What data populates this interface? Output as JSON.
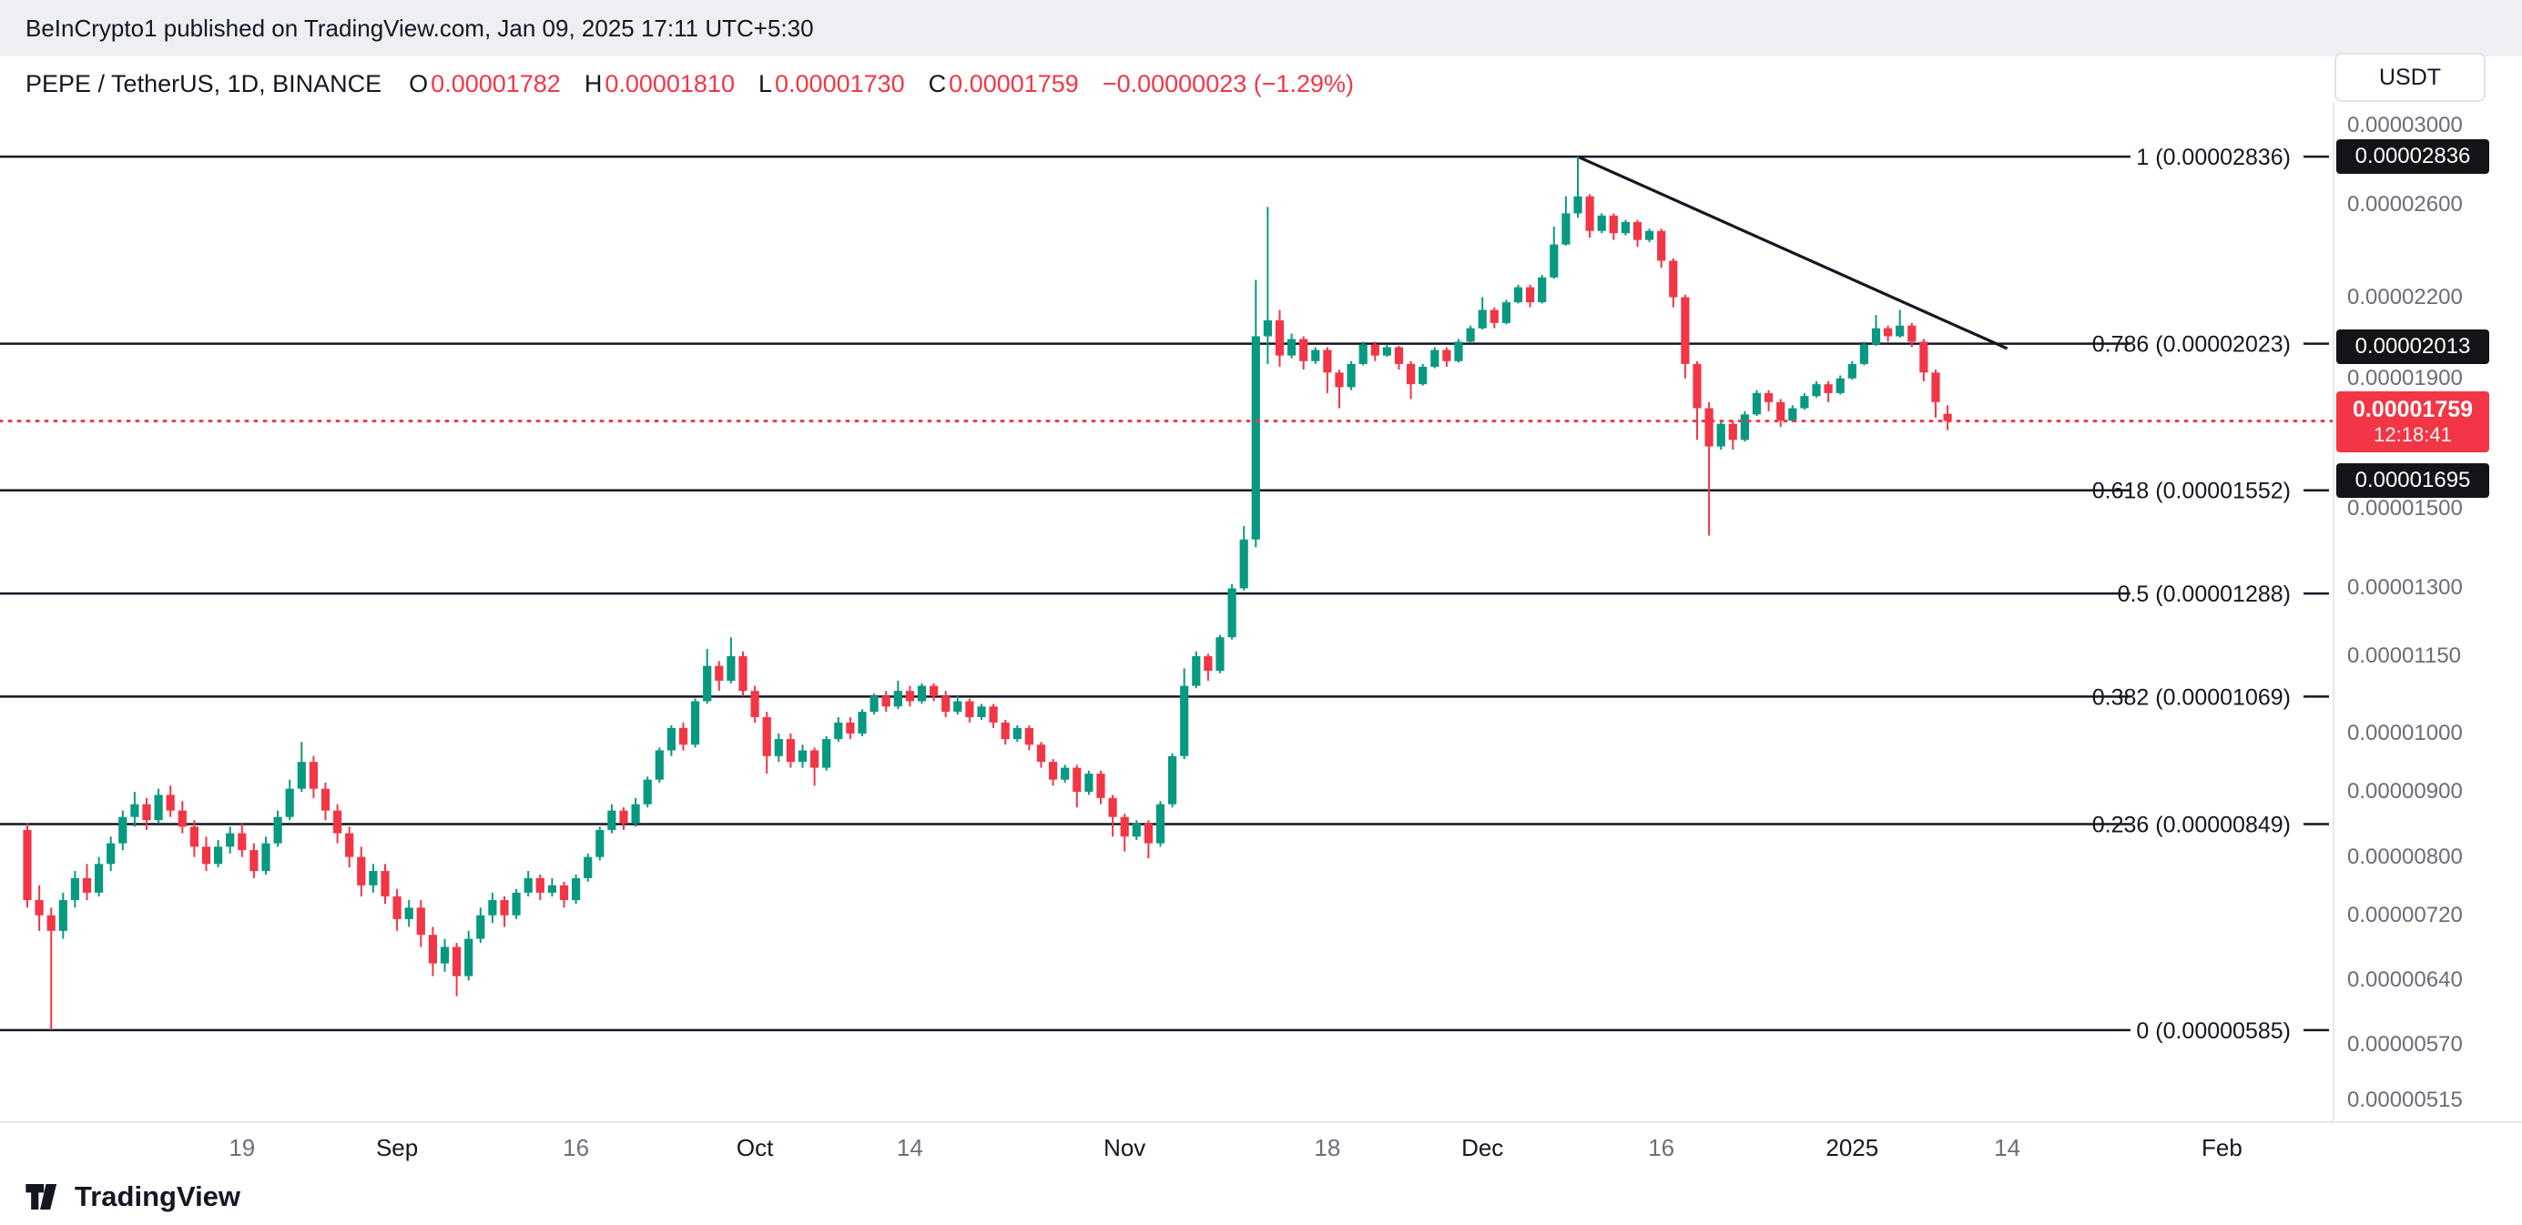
{
  "topbar": {
    "text": "BeInCrypto1 published on TradingView.com, Jan 09, 2025 17:11 UTC+5:30"
  },
  "header": {
    "symbol": "PEPE / TetherUS, 1D, BINANCE",
    "ohlc": [
      {
        "label": "O",
        "value": "0.00001782"
      },
      {
        "label": "H",
        "value": "0.00001810"
      },
      {
        "label": "L",
        "value": "0.00001730"
      },
      {
        "label": "C",
        "value": "0.00001759"
      }
    ],
    "change": "−0.00000023 (−1.29%)",
    "quote_button": "USDT"
  },
  "footer": {
    "brand": "TradingView"
  },
  "colors": {
    "up": "#089981",
    "down": "#f23645",
    "drawing": "#131722",
    "price_line": "#f23645",
    "badge_dark": "#121418"
  },
  "chart_data": {
    "type": "candlestick",
    "symbol": "PEPE/USDT",
    "interval": "1D",
    "exchange": "BINANCE",
    "scale": "logarithmic",
    "price_unit": 1e-08,
    "approx_start_date": "2024-08-01",
    "last_candle_date": "2025-01-09",
    "candles": [
      [
        840,
        850,
        730,
        740
      ],
      [
        740,
        760,
        700,
        720
      ],
      [
        720,
        730,
        585,
        700
      ],
      [
        700,
        750,
        690,
        740
      ],
      [
        740,
        780,
        730,
        770
      ],
      [
        770,
        790,
        740,
        750
      ],
      [
        750,
        800,
        745,
        790
      ],
      [
        790,
        830,
        780,
        820
      ],
      [
        820,
        870,
        810,
        860
      ],
      [
        860,
        900,
        845,
        880
      ],
      [
        880,
        890,
        840,
        855
      ],
      [
        855,
        905,
        850,
        895
      ],
      [
        895,
        910,
        860,
        870
      ],
      [
        870,
        885,
        835,
        845
      ],
      [
        845,
        855,
        800,
        815
      ],
      [
        815,
        830,
        780,
        790
      ],
      [
        790,
        825,
        785,
        815
      ],
      [
        815,
        845,
        805,
        835
      ],
      [
        835,
        850,
        800,
        810
      ],
      [
        810,
        820,
        770,
        780
      ],
      [
        780,
        830,
        775,
        820
      ],
      [
        820,
        870,
        815,
        860
      ],
      [
        860,
        920,
        855,
        905
      ],
      [
        905,
        985,
        900,
        950
      ],
      [
        950,
        960,
        890,
        905
      ],
      [
        905,
        915,
        855,
        870
      ],
      [
        870,
        880,
        820,
        835
      ],
      [
        835,
        845,
        785,
        800
      ],
      [
        800,
        815,
        745,
        760
      ],
      [
        760,
        790,
        750,
        780
      ],
      [
        780,
        790,
        735,
        745
      ],
      [
        745,
        755,
        700,
        715
      ],
      [
        715,
        740,
        705,
        730
      ],
      [
        730,
        740,
        680,
        695
      ],
      [
        695,
        705,
        645,
        660
      ],
      [
        660,
        690,
        650,
        680
      ],
      [
        680,
        685,
        622,
        645
      ],
      [
        645,
        700,
        640,
        690
      ],
      [
        690,
        730,
        685,
        720
      ],
      [
        720,
        750,
        710,
        740
      ],
      [
        740,
        745,
        705,
        720
      ],
      [
        720,
        755,
        715,
        750
      ],
      [
        750,
        780,
        745,
        770
      ],
      [
        770,
        775,
        740,
        750
      ],
      [
        750,
        770,
        745,
        760
      ],
      [
        760,
        765,
        730,
        740
      ],
      [
        740,
        775,
        735,
        770
      ],
      [
        770,
        805,
        765,
        800
      ],
      [
        800,
        845,
        795,
        840
      ],
      [
        840,
        880,
        835,
        870
      ],
      [
        870,
        875,
        840,
        850
      ],
      [
        850,
        890,
        845,
        880
      ],
      [
        880,
        925,
        875,
        920
      ],
      [
        920,
        975,
        915,
        970
      ],
      [
        970,
        1015,
        960,
        1010
      ],
      [
        1010,
        1020,
        970,
        980
      ],
      [
        980,
        1065,
        975,
        1060
      ],
      [
        1060,
        1165,
        1055,
        1130
      ],
      [
        1130,
        1140,
        1080,
        1100
      ],
      [
        1100,
        1190,
        1095,
        1150
      ],
      [
        1150,
        1160,
        1070,
        1080
      ],
      [
        1080,
        1090,
        1020,
        1030
      ],
      [
        1030,
        1040,
        930,
        960
      ],
      [
        960,
        1000,
        950,
        990
      ],
      [
        990,
        1000,
        940,
        950
      ],
      [
        950,
        980,
        940,
        970
      ],
      [
        970,
        975,
        910,
        940
      ],
      [
        940,
        995,
        935,
        990
      ],
      [
        990,
        1030,
        985,
        1020
      ],
      [
        1020,
        1030,
        990,
        1000
      ],
      [
        1000,
        1045,
        995,
        1040
      ],
      [
        1040,
        1075,
        1035,
        1070
      ],
      [
        1070,
        1080,
        1040,
        1050
      ],
      [
        1050,
        1100,
        1045,
        1080
      ],
      [
        1080,
        1090,
        1050,
        1060
      ],
      [
        1060,
        1095,
        1055,
        1090
      ],
      [
        1090,
        1095,
        1060,
        1070
      ],
      [
        1070,
        1080,
        1030,
        1040
      ],
      [
        1040,
        1070,
        1035,
        1060
      ],
      [
        1060,
        1065,
        1020,
        1030
      ],
      [
        1030,
        1055,
        1025,
        1050
      ],
      [
        1050,
        1055,
        1010,
        1020
      ],
      [
        1020,
        1025,
        980,
        990
      ],
      [
        990,
        1015,
        985,
        1010
      ],
      [
        1010,
        1015,
        970,
        980
      ],
      [
        980,
        985,
        940,
        950
      ],
      [
        950,
        955,
        910,
        920
      ],
      [
        920,
        945,
        915,
        940
      ],
      [
        940,
        945,
        875,
        900
      ],
      [
        900,
        935,
        895,
        930
      ],
      [
        930,
        935,
        880,
        890
      ],
      [
        890,
        895,
        830,
        860
      ],
      [
        860,
        865,
        808,
        830
      ],
      [
        830,
        855,
        825,
        850
      ],
      [
        850,
        855,
        798,
        820
      ],
      [
        820,
        885,
        815,
        880
      ],
      [
        880,
        965,
        875,
        960
      ],
      [
        960,
        1125,
        955,
        1090
      ],
      [
        1090,
        1160,
        1085,
        1150
      ],
      [
        1150,
        1155,
        1100,
        1120
      ],
      [
        1120,
        1195,
        1115,
        1190
      ],
      [
        1190,
        1310,
        1185,
        1300
      ],
      [
        1300,
        1455,
        1295,
        1420
      ],
      [
        1420,
        2270,
        1400,
        2050
      ],
      [
        2050,
        2590,
        1950,
        2110
      ],
      [
        2110,
        2150,
        1940,
        1980
      ],
      [
        1980,
        2060,
        1970,
        2040
      ],
      [
        2040,
        2050,
        1930,
        1960
      ],
      [
        1960,
        2010,
        1950,
        2000
      ],
      [
        2000,
        2010,
        1850,
        1920
      ],
      [
        1920,
        1930,
        1800,
        1870
      ],
      [
        1870,
        1960,
        1860,
        1950
      ],
      [
        1950,
        2030,
        1945,
        2020
      ],
      [
        2020,
        2030,
        1960,
        1980
      ],
      [
        1980,
        2020,
        1975,
        2010
      ],
      [
        2010,
        2015,
        1930,
        1950
      ],
      [
        1950,
        1960,
        1830,
        1880
      ],
      [
        1880,
        1950,
        1875,
        1940
      ],
      [
        1940,
        2010,
        1935,
        2000
      ],
      [
        2000,
        2010,
        1940,
        1960
      ],
      [
        1960,
        2040,
        1955,
        2030
      ],
      [
        2030,
        2090,
        2025,
        2080
      ],
      [
        2080,
        2200,
        2075,
        2150
      ],
      [
        2150,
        2160,
        2080,
        2100
      ],
      [
        2100,
        2190,
        2095,
        2180
      ],
      [
        2180,
        2250,
        2175,
        2240
      ],
      [
        2240,
        2250,
        2160,
        2180
      ],
      [
        2180,
        2290,
        2175,
        2280
      ],
      [
        2280,
        2500,
        2275,
        2420
      ],
      [
        2420,
        2640,
        2415,
        2560
      ],
      [
        2560,
        2836,
        2540,
        2640
      ],
      [
        2640,
        2650,
        2450,
        2480
      ],
      [
        2480,
        2560,
        2470,
        2550
      ],
      [
        2550,
        2560,
        2440,
        2470
      ],
      [
        2470,
        2530,
        2460,
        2520
      ],
      [
        2520,
        2530,
        2410,
        2440
      ],
      [
        2440,
        2490,
        2430,
        2480
      ],
      [
        2480,
        2490,
        2320,
        2350
      ],
      [
        2350,
        2360,
        2160,
        2200
      ],
      [
        2200,
        2210,
        1900,
        1950
      ],
      [
        1950,
        1960,
        1700,
        1800
      ],
      [
        1800,
        1820,
        1430,
        1680
      ],
      [
        1680,
        1760,
        1670,
        1750
      ],
      [
        1750,
        1760,
        1670,
        1700
      ],
      [
        1700,
        1790,
        1695,
        1780
      ],
      [
        1780,
        1860,
        1775,
        1850
      ],
      [
        1850,
        1860,
        1790,
        1820
      ],
      [
        1820,
        1830,
        1740,
        1760
      ],
      [
        1760,
        1810,
        1755,
        1800
      ],
      [
        1800,
        1850,
        1795,
        1840
      ],
      [
        1840,
        1890,
        1835,
        1880
      ],
      [
        1880,
        1890,
        1820,
        1850
      ],
      [
        1850,
        1910,
        1845,
        1900
      ],
      [
        1900,
        1960,
        1895,
        1950
      ],
      [
        1950,
        2030,
        1945,
        2020
      ],
      [
        2020,
        2130,
        2015,
        2080
      ],
      [
        2080,
        2090,
        2030,
        2050
      ],
      [
        2050,
        2150,
        2045,
        2090
      ],
      [
        2090,
        2100,
        2010,
        2030
      ],
      [
        2030,
        2040,
        1890,
        1920
      ],
      [
        1920,
        1930,
        1770,
        1820
      ],
      [
        1782,
        1810,
        1730,
        1759
      ]
    ],
    "fib_levels": [
      {
        "level": "1",
        "price": 2836,
        "label": "1 (0.00002836)"
      },
      {
        "level": "0.786",
        "price": 2023,
        "label": "0.786 (0.00002023)"
      },
      {
        "level": "0.618",
        "price": 1552,
        "label": "0.618 (0.00001552)"
      },
      {
        "level": "0.5",
        "price": 1288,
        "label": "0.5 (0.00001288)"
      },
      {
        "level": "0.382",
        "price": 1069,
        "label": "0.382 (0.00001069)"
      },
      {
        "level": "0.236",
        "price": 849,
        "label": "0.236 (0.00000849)"
      },
      {
        "level": "0",
        "price": 585,
        "label": "0 (0.00000585)"
      }
    ],
    "trendline": {
      "from_day": 130,
      "from_price": 2836,
      "to_day": 166,
      "to_price": 2005
    },
    "price_line": {
      "price": 1759,
      "label": "0.00001759",
      "countdown": "12:18:41"
    },
    "y_axis_ticks": [
      {
        "label": "0.00003000",
        "price": 3000
      },
      {
        "label": "0.00002600",
        "price": 2600
      },
      {
        "label": "0.00002200",
        "price": 2200
      },
      {
        "label": "0.00001900",
        "price": 1900
      },
      {
        "label": "0.00001500",
        "price": 1500
      },
      {
        "label": "0.00001300",
        "price": 1300
      },
      {
        "label": "0.00001150",
        "price": 1150
      },
      {
        "label": "0.00001000",
        "price": 1000
      },
      {
        "label": "0.00000900",
        "price": 900
      },
      {
        "label": "0.00000800",
        "price": 800
      },
      {
        "label": "0.00000720",
        "price": 720
      },
      {
        "label": "0.00000640",
        "price": 640
      },
      {
        "label": "0.00000570",
        "price": 570
      },
      {
        "label": "0.00000515",
        "price": 515
      }
    ],
    "axis_badges": [
      {
        "label": "0.00002836",
        "price": 2836
      },
      {
        "label": "0.00002013",
        "price": 2013
      },
      {
        "label": "0.00001695",
        "price": 1695
      }
    ],
    "x_axis_labels": [
      {
        "label": "19",
        "day": 18,
        "major": false
      },
      {
        "label": "Sep",
        "day": 31,
        "major": true
      },
      {
        "label": "16",
        "day": 46,
        "major": false
      },
      {
        "label": "Oct",
        "day": 61,
        "major": true
      },
      {
        "label": "14",
        "day": 74,
        "major": false
      },
      {
        "label": "Nov",
        "day": 92,
        "major": true
      },
      {
        "label": "18",
        "day": 109,
        "major": false
      },
      {
        "label": "Dec",
        "day": 122,
        "major": true
      },
      {
        "label": "16",
        "day": 137,
        "major": false
      },
      {
        "label": "2025",
        "day": 153,
        "major": true
      },
      {
        "label": "14",
        "day": 166,
        "major": false
      },
      {
        "label": "Feb",
        "day": 184,
        "major": true
      }
    ]
  }
}
